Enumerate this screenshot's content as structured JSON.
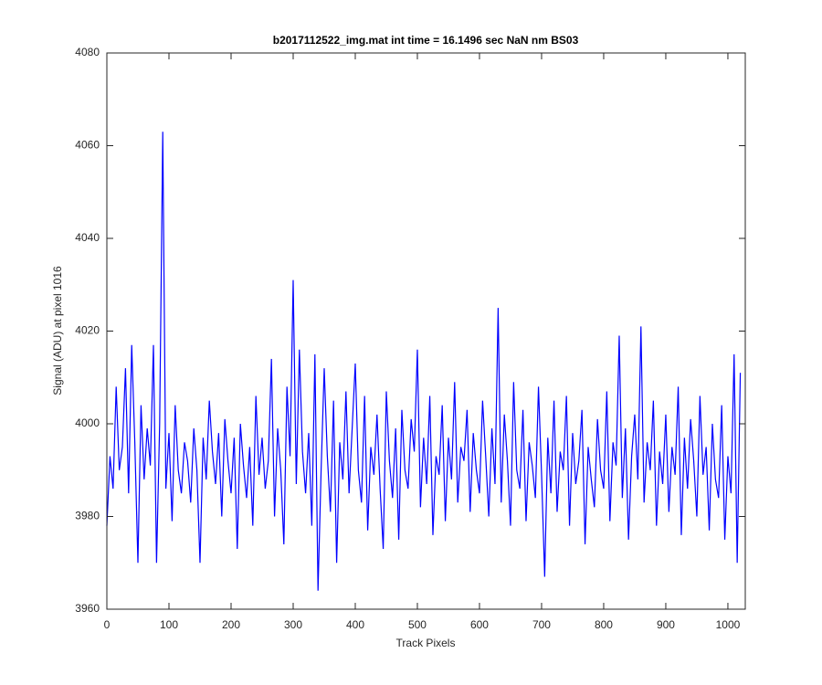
{
  "chart_data": {
    "type": "line",
    "title": "b2017112522_img.mat int time = 16.1496 sec  NaN nm BS03",
    "xlabel": "Track Pixels",
    "ylabel": "Signal (ADU) at pixel 1016",
    "color": "#0000ff",
    "xlim": [
      0,
      1028
    ],
    "ylim": [
      3960,
      4080
    ],
    "xticks": [
      0,
      100,
      200,
      300,
      400,
      500,
      600,
      700,
      800,
      900,
      1000
    ],
    "yticks": [
      3960,
      3980,
      4000,
      4020,
      4040,
      4060,
      4080
    ],
    "grid": false,
    "x": [
      0,
      5,
      10,
      15,
      20,
      25,
      30,
      35,
      40,
      45,
      50,
      55,
      60,
      65,
      70,
      75,
      80,
      85,
      90,
      95,
      100,
      105,
      110,
      115,
      120,
      125,
      130,
      135,
      140,
      145,
      150,
      155,
      160,
      165,
      170,
      175,
      180,
      185,
      190,
      195,
      200,
      205,
      210,
      215,
      220,
      225,
      230,
      235,
      240,
      245,
      250,
      255,
      260,
      265,
      270,
      275,
      280,
      285,
      290,
      295,
      300,
      305,
      310,
      315,
      320,
      325,
      330,
      335,
      340,
      345,
      350,
      355,
      360,
      365,
      370,
      375,
      380,
      385,
      390,
      395,
      400,
      405,
      410,
      415,
      420,
      425,
      430,
      435,
      440,
      445,
      450,
      455,
      460,
      465,
      470,
      475,
      480,
      485,
      490,
      495,
      500,
      505,
      510,
      515,
      520,
      525,
      530,
      535,
      540,
      545,
      550,
      555,
      560,
      565,
      570,
      575,
      580,
      585,
      590,
      595,
      600,
      605,
      610,
      615,
      620,
      625,
      630,
      635,
      640,
      645,
      650,
      655,
      660,
      665,
      670,
      675,
      680,
      685,
      690,
      695,
      700,
      705,
      710,
      715,
      720,
      725,
      730,
      735,
      740,
      745,
      750,
      755,
      760,
      765,
      770,
      775,
      780,
      785,
      790,
      795,
      800,
      805,
      810,
      815,
      820,
      825,
      830,
      835,
      840,
      845,
      850,
      855,
      860,
      865,
      870,
      875,
      880,
      885,
      890,
      895,
      900,
      905,
      910,
      915,
      920,
      925,
      930,
      935,
      940,
      945,
      950,
      955,
      960,
      965,
      970,
      975,
      980,
      985,
      990,
      995,
      1000,
      1005,
      1010,
      1015,
      1020
    ],
    "values": [
      3978,
      3993,
      3986,
      4008,
      3990,
      3995,
      4012,
      3985,
      4017,
      3996,
      3970,
      4004,
      3988,
      3999,
      3991,
      4017,
      3970,
      4000,
      4063,
      3986,
      3998,
      3979,
      4004,
      3990,
      3985,
      3996,
      3992,
      3983,
      3999,
      3990,
      3970,
      3997,
      3988,
      4005,
      3994,
      3987,
      3998,
      3980,
      4001,
      3992,
      3985,
      3997,
      3973,
      4000,
      3991,
      3984,
      3995,
      3978,
      4006,
      3989,
      3997,
      3986,
      3992,
      4014,
      3980,
      3999,
      3990,
      3974,
      4008,
      3993,
      4031,
      3987,
      4016,
      3994,
      3985,
      3998,
      3978,
      4015,
      3964,
      3990,
      4012,
      3993,
      3981,
      4005,
      3970,
      3996,
      3988,
      4007,
      3985,
      3999,
      4013,
      3990,
      3983,
      4006,
      3977,
      3995,
      3989,
      4002,
      3986,
      3973,
      4007,
      3992,
      3984,
      3999,
      3975,
      4003,
      3990,
      3986,
      4001,
      3994,
      4016,
      3982,
      3997,
      3987,
      4006,
      3976,
      3993,
      3989,
      4004,
      3979,
      3997,
      3988,
      4009,
      3983,
      3995,
      3992,
      4003,
      3981,
      3998,
      3990,
      3985,
      4005,
      3993,
      3980,
      3999,
      3987,
      4025,
      3983,
      4002,
      3992,
      3978,
      4009,
      3990,
      3986,
      4003,
      3979,
      3996,
      3991,
      3984,
      4008,
      3989,
      3967,
      3997,
      3985,
      4005,
      3981,
      3994,
      3990,
      4006,
      3978,
      3998,
      3987,
      3992,
      4003,
      3974,
      3995,
      3988,
      3982,
      4001,
      3990,
      3986,
      4007,
      3979,
      3996,
      3991,
      4019,
      3984,
      3999,
      3975,
      3993,
      4002,
      3988,
      4021,
      3983,
      3996,
      3990,
      4005,
      3978,
      3994,
      3987,
      4002,
      3981,
      3995,
      3989,
      4008,
      3976,
      3997,
      3986,
      4001,
      3992,
      3980,
      4006,
      3989,
      3995,
      3977,
      4000,
      3988,
      3984,
      4004,
      3975,
      3993,
      3985,
      4015,
      3970,
      4011
    ]
  }
}
